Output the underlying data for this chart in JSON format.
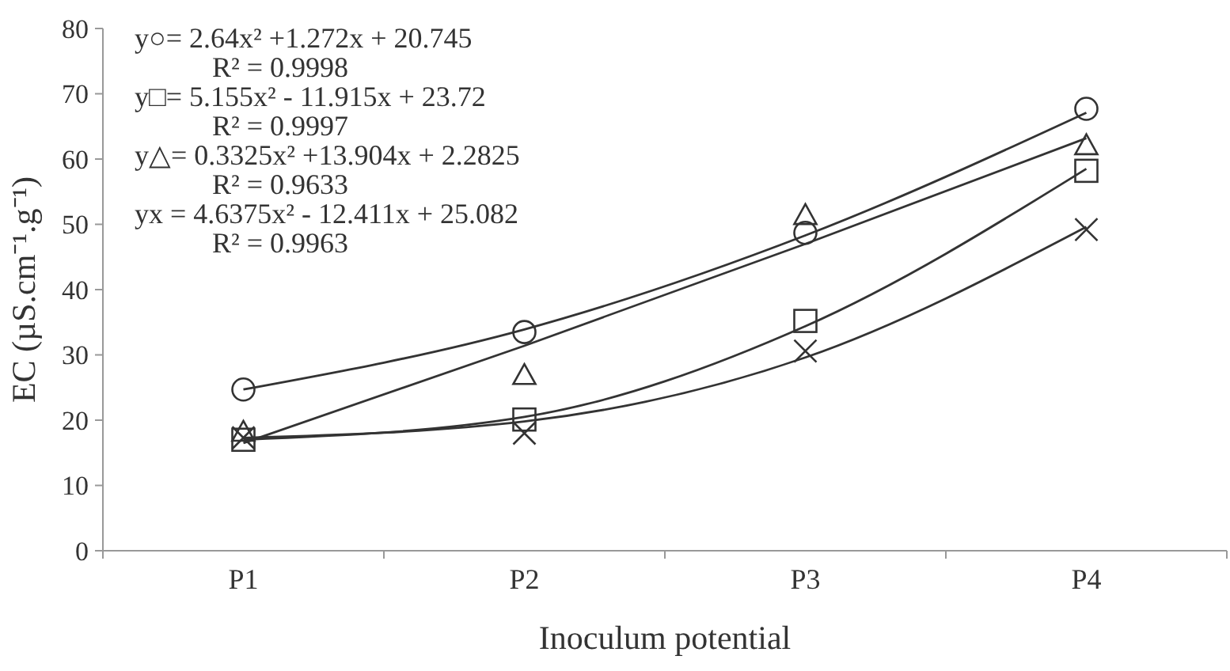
{
  "chart_data": {
    "type": "scatter",
    "xlabel": "Inoculum potential",
    "ylabel": "EC (µS.cm⁻¹.g⁻¹)",
    "categories": [
      "P1",
      "P2",
      "P3",
      "P4"
    ],
    "ylim": [
      0,
      80
    ],
    "yticks": [
      0,
      10,
      20,
      30,
      40,
      50,
      60,
      70,
      80
    ],
    "grid": false,
    "annotations": [
      "y○= 2.64x² +1.272x + 20.745",
      "R² = 0.9998",
      "y□= 5.155x² - 11.915x + 23.72",
      "R² = 0.9997",
      "y△= 0.3325x² +13.904x + 2.2825",
      "R² = 0.9633",
      "yx = 4.6375x² - 12.411x + 25.082",
      "R² = 0.9963"
    ],
    "series": [
      {
        "marker": "circle",
        "color": "#333333",
        "values": [
          24.7,
          33.5,
          48.7,
          67.7
        ]
      },
      {
        "marker": "square",
        "color": "#333333",
        "values": [
          17,
          20.1,
          35.2,
          58.2
        ]
      },
      {
        "marker": "triangle",
        "color": "#333333",
        "values": [
          18.2,
          26.9,
          51.4,
          62.1
        ]
      },
      {
        "marker": "cross",
        "color": "#333333",
        "values": [
          17.3,
          18,
          30.6,
          49.2
        ]
      },
      {
        "type": "line",
        "marker": "none",
        "color": "#333333",
        "values": [
          24.7,
          33.9,
          48.3,
          67.1
        ]
      },
      {
        "type": "line",
        "marker": "none",
        "color": "#333333",
        "values": [
          17,
          20.5,
          34.4,
          58.5
        ]
      },
      {
        "type": "line",
        "marker": "none",
        "color": "#333333",
        "values": [
          16.5,
          31.4,
          47,
          63.2
        ]
      },
      {
        "type": "line",
        "marker": "none",
        "color": "#333333",
        "values": [
          17.3,
          19.8,
          29.6,
          49.6
        ]
      }
    ]
  }
}
